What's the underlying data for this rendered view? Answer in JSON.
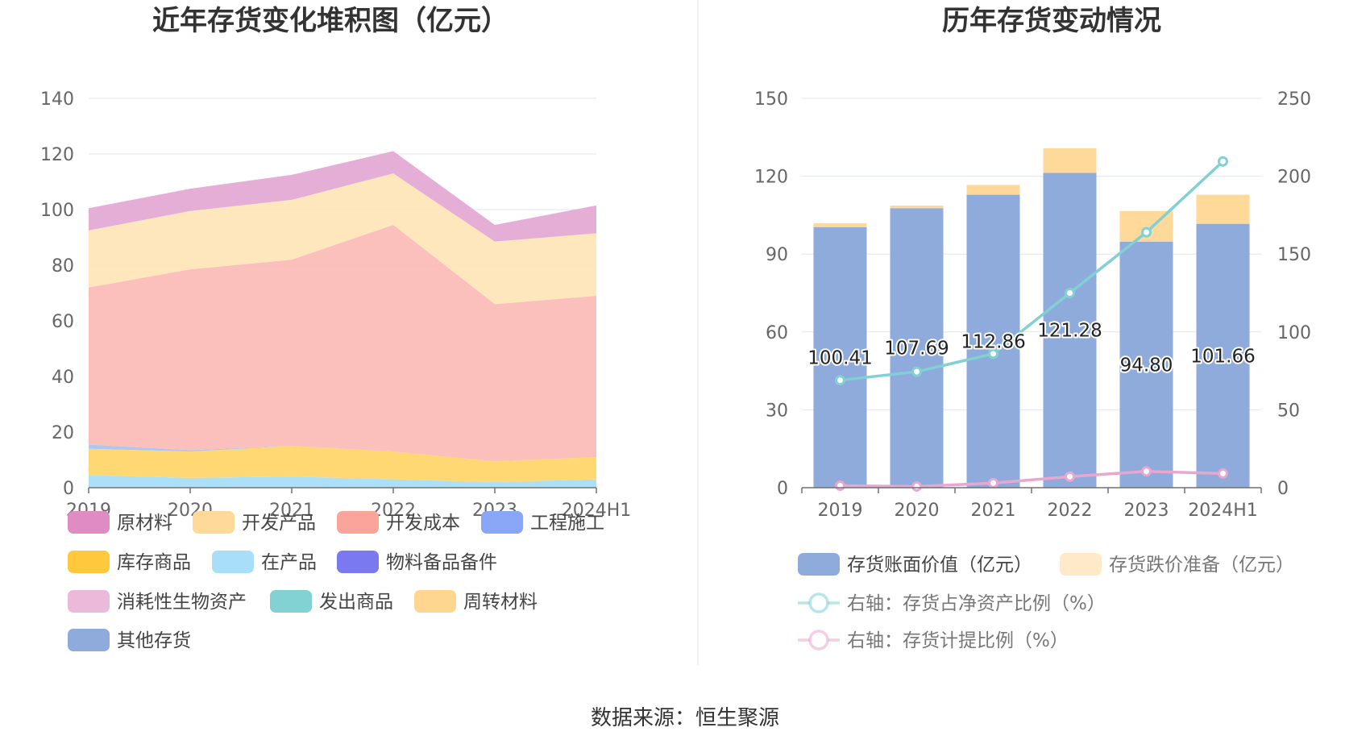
{
  "footer": {
    "source": "数据来源：恒生聚源"
  },
  "chart_data": [
    {
      "type": "area",
      "stacked": true,
      "title": "近年存货变化堆积图（亿元）",
      "categories": [
        "2019",
        "2020",
        "2021",
        "2022",
        "2023",
        "2024H1"
      ],
      "ylim": [
        0,
        140
      ],
      "yticks": [
        0,
        20,
        40,
        60,
        80,
        100,
        120,
        140
      ],
      "grid": true,
      "legend_position": "bottom",
      "series": [
        {
          "name": "在产品",
          "color": "#a8def8",
          "values": [
            4.5,
            3.5,
            4.0,
            3.0,
            2.0,
            3.0
          ]
        },
        {
          "name": "库存商品",
          "color": "#ffd66b",
          "values": [
            9.5,
            9.5,
            11.0,
            10.0,
            7.5,
            8.0
          ]
        },
        {
          "name": "工程施工",
          "color": "#a9c4f0",
          "values": [
            1.5,
            0.5,
            0,
            0,
            0,
            0
          ]
        },
        {
          "name": "开发成本",
          "color": "#fbbcb8",
          "values": [
            56.5,
            65.0,
            67.0,
            81.5,
            56.5,
            58.0
          ]
        },
        {
          "name": "开发产品",
          "color": "#fee6b8",
          "values": [
            20.5,
            21.0,
            21.5,
            18.5,
            22.5,
            22.5
          ]
        },
        {
          "name": "原材料",
          "color": "#e4aad4",
          "values": [
            8.0,
            8.0,
            9.0,
            8.0,
            6.0,
            10.0
          ]
        }
      ],
      "legend": [
        {
          "name": "原材料",
          "color": "#de8cc2"
        },
        {
          "name": "开发产品",
          "color": "#fed99a"
        },
        {
          "name": "开发成本",
          "color": "#f9a59c"
        },
        {
          "name": "工程施工",
          "color": "#8aa6f7"
        },
        {
          "name": "库存商品",
          "color": "#ffc83d"
        },
        {
          "name": "在产品",
          "color": "#a8def8"
        },
        {
          "name": "物料备品备件",
          "color": "#7b79ef"
        },
        {
          "name": "消耗性生物资产",
          "color": "#ebbad9"
        },
        {
          "name": "发出商品",
          "color": "#82d1d3"
        },
        {
          "name": "周转材料",
          "color": "#ffd690"
        },
        {
          "name": "其他存货",
          "color": "#8eabdb"
        }
      ]
    },
    {
      "type": "bar",
      "stacked": true,
      "title": "历年存货变动情况",
      "categories": [
        "2019",
        "2020",
        "2021",
        "2022",
        "2023",
        "2024H1"
      ],
      "ylim_left": [
        0,
        150
      ],
      "yticks_left": [
        0,
        30,
        60,
        90,
        120,
        150
      ],
      "ylim_right": [
        0,
        250
      ],
      "yticks_right": [
        0,
        50,
        100,
        150,
        200,
        250
      ],
      "grid": true,
      "legend_position": "bottom",
      "series": [
        {
          "name": "存货账面价值（亿元）",
          "kind": "bar",
          "axis": "left",
          "color": "#8eabdb",
          "values": [
            100.41,
            107.69,
            112.86,
            121.28,
            94.8,
            101.66
          ],
          "labels": [
            "100.41",
            "107.69",
            "112.86",
            "121.28",
            "94.80",
            "101.66"
          ]
        },
        {
          "name": "存货跌价准备（亿元）",
          "kind": "bar",
          "axis": "left",
          "color": "#fed99a",
          "values": [
            1.5,
            1.0,
            3.8,
            9.5,
            11.8,
            11.2
          ]
        },
        {
          "name": "右轴：存货占净资产比例（%）",
          "kind": "line",
          "axis": "right",
          "color": "#80d0d4",
          "values": [
            69,
            74.5,
            86,
            125,
            164,
            209.5
          ]
        },
        {
          "name": "右轴：存货计提比例（%）",
          "kind": "line",
          "axis": "right",
          "color": "#e9a6cf",
          "values": [
            1.3,
            0.8,
            3.0,
            7.1,
            10.5,
            9.1
          ]
        }
      ]
    }
  ]
}
